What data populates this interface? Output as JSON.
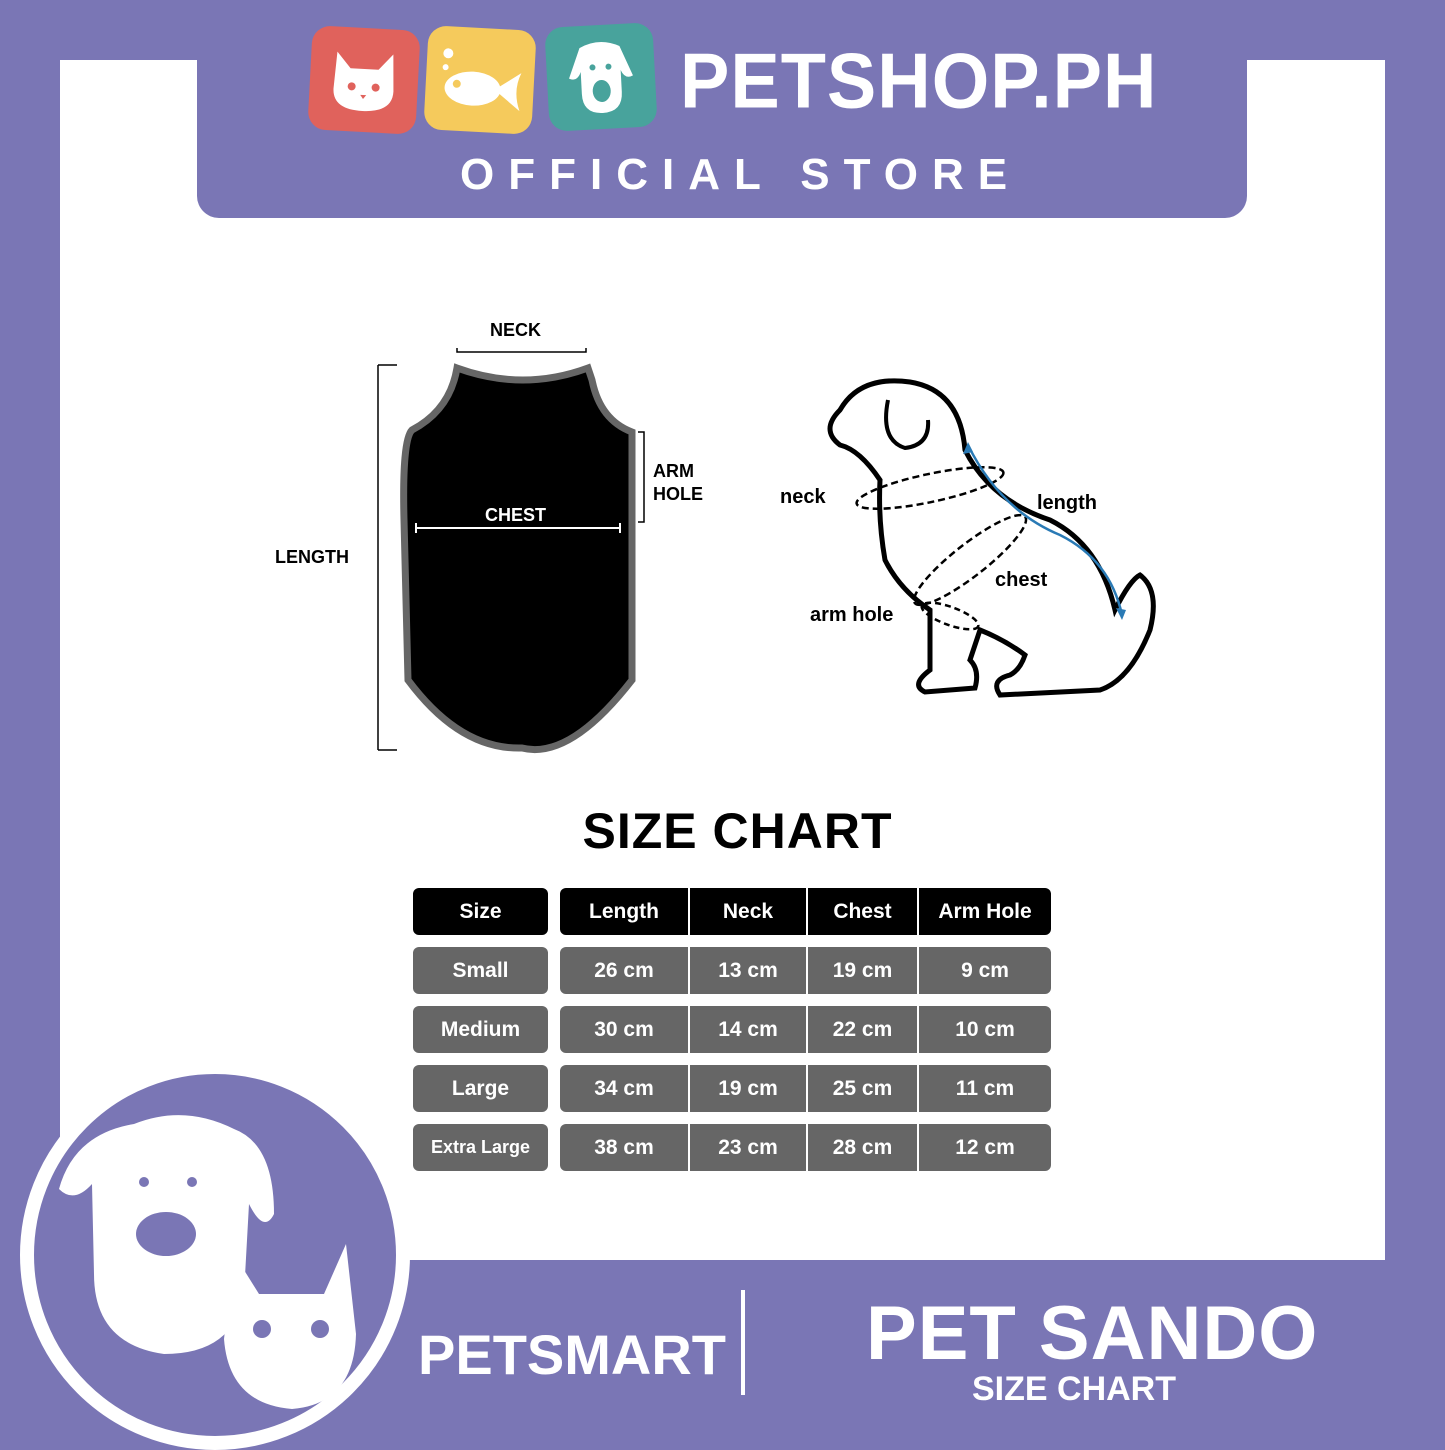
{
  "header": {
    "brand": "PETSHOP.PH",
    "tagline": "OFFICIAL STORE",
    "logo_icons": [
      "cat-icon",
      "fish-icon",
      "dog-icon"
    ],
    "tile_colors": [
      "#e0625c",
      "#f5ca5c",
      "#48a39c"
    ]
  },
  "shirt_diagram": {
    "neck": "NECK",
    "arm_hole": "ARM",
    "arm_hole2": "HOLE",
    "chest": "CHEST",
    "length": "LENGTH"
  },
  "dog_diagram": {
    "neck": "neck",
    "length": "length",
    "chest": "chest",
    "arm_hole": "arm hole"
  },
  "size_chart": {
    "title": "SIZE CHART",
    "headers": [
      "Size",
      "Length",
      "Neck",
      "Chest",
      "Arm Hole"
    ],
    "rows": [
      [
        "Small",
        "26 cm",
        "13 cm",
        "19 cm",
        "9 cm"
      ],
      [
        "Medium",
        "30 cm",
        "14 cm",
        "22 cm",
        "10 cm"
      ],
      [
        "Large",
        "34 cm",
        "19 cm",
        "25 cm",
        "11 cm"
      ],
      [
        "Extra Large",
        "38 cm",
        "23 cm",
        "28 cm",
        "12 cm"
      ]
    ]
  },
  "footer": {
    "brand": "PETSMART",
    "product": "PET SANDO",
    "subtitle": "SIZE CHART"
  },
  "colors": {
    "purple": "#7a76b5",
    "header_cell": "#000000",
    "body_cell": "#666666",
    "arrow_blue": "#2a7ab5"
  }
}
